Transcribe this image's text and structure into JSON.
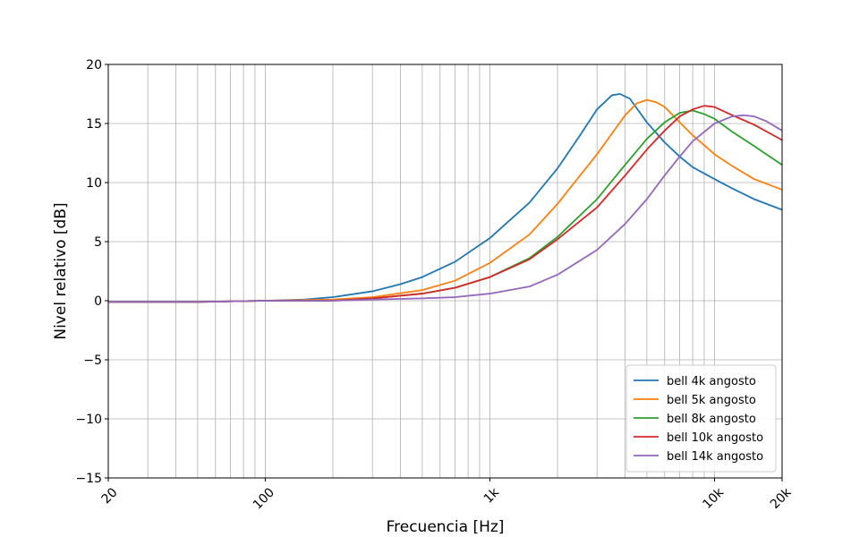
{
  "chart_data": {
    "type": "line",
    "xscale": "log",
    "xlabel": "Frecuencia [Hz]",
    "ylabel": "Nivel relativo [dB]",
    "xlim": [
      20,
      20000
    ],
    "ylim": [
      -15,
      20
    ],
    "grid": true,
    "legend_position": "lower-right",
    "x_ticks": [
      {
        "value": 20,
        "label": "20"
      },
      {
        "value": 100,
        "label": "100"
      },
      {
        "value": 1000,
        "label": "1k"
      },
      {
        "value": 10000,
        "label": "10k"
      },
      {
        "value": 20000,
        "label": "20k"
      }
    ],
    "y_ticks": [
      {
        "value": 20,
        "label": "20"
      },
      {
        "value": 15,
        "label": "15"
      },
      {
        "value": 10,
        "label": "10"
      },
      {
        "value": 5,
        "label": "5"
      },
      {
        "value": 0,
        "label": "0"
      },
      {
        "value": -5,
        "label": "−5"
      },
      {
        "value": -10,
        "label": "−10"
      },
      {
        "value": -15,
        "label": "−15"
      }
    ],
    "series": [
      {
        "name": "bell 4k angosto",
        "color": "#1f77b4",
        "points": [
          [
            20,
            -0.1
          ],
          [
            50,
            -0.1
          ],
          [
            100,
            0.0
          ],
          [
            150,
            0.1
          ],
          [
            200,
            0.3
          ],
          [
            300,
            0.8
          ],
          [
            400,
            1.4
          ],
          [
            500,
            2.0
          ],
          [
            700,
            3.3
          ],
          [
            1000,
            5.3
          ],
          [
            1500,
            8.3
          ],
          [
            2000,
            11.2
          ],
          [
            2500,
            13.9
          ],
          [
            3000,
            16.2
          ],
          [
            3500,
            17.4
          ],
          [
            3800,
            17.5
          ],
          [
            4200,
            17.1
          ],
          [
            5000,
            15.1
          ],
          [
            6000,
            13.4
          ],
          [
            7000,
            12.2
          ],
          [
            8000,
            11.3
          ],
          [
            10000,
            10.3
          ],
          [
            12000,
            9.5
          ],
          [
            15000,
            8.6
          ],
          [
            20000,
            7.7
          ]
        ]
      },
      {
        "name": "bell 5k angosto",
        "color": "#ff7f0e",
        "points": [
          [
            20,
            -0.1
          ],
          [
            50,
            -0.1
          ],
          [
            100,
            0.0
          ],
          [
            200,
            0.1
          ],
          [
            300,
            0.3
          ],
          [
            500,
            0.9
          ],
          [
            700,
            1.7
          ],
          [
            1000,
            3.2
          ],
          [
            1500,
            5.6
          ],
          [
            2000,
            8.2
          ],
          [
            3000,
            12.4
          ],
          [
            4000,
            15.7
          ],
          [
            4500,
            16.7
          ],
          [
            5000,
            17.0
          ],
          [
            5500,
            16.8
          ],
          [
            6000,
            16.4
          ],
          [
            7000,
            15.1
          ],
          [
            8000,
            14.0
          ],
          [
            10000,
            12.4
          ],
          [
            12000,
            11.4
          ],
          [
            15000,
            10.3
          ],
          [
            20000,
            9.4
          ]
        ]
      },
      {
        "name": "bell 8k angosto",
        "color": "#2ca02c",
        "points": [
          [
            20,
            -0.1
          ],
          [
            50,
            -0.1
          ],
          [
            100,
            0.0
          ],
          [
            200,
            0.0
          ],
          [
            300,
            0.2
          ],
          [
            500,
            0.6
          ],
          [
            700,
            1.1
          ],
          [
            1000,
            2.0
          ],
          [
            1500,
            3.6
          ],
          [
            2000,
            5.4
          ],
          [
            3000,
            8.6
          ],
          [
            4000,
            11.5
          ],
          [
            5000,
            13.7
          ],
          [
            6000,
            15.1
          ],
          [
            7000,
            15.9
          ],
          [
            8000,
            16.1
          ],
          [
            9000,
            15.8
          ],
          [
            10000,
            15.4
          ],
          [
            12000,
            14.3
          ],
          [
            15000,
            13.1
          ],
          [
            20000,
            11.5
          ]
        ]
      },
      {
        "name": "bell 10k angosto",
        "color": "#d62728",
        "points": [
          [
            20,
            -0.1
          ],
          [
            50,
            -0.1
          ],
          [
            100,
            0.0
          ],
          [
            200,
            0.0
          ],
          [
            300,
            0.2
          ],
          [
            500,
            0.6
          ],
          [
            700,
            1.1
          ],
          [
            1000,
            2.0
          ],
          [
            1500,
            3.5
          ],
          [
            2000,
            5.2
          ],
          [
            3000,
            7.9
          ],
          [
            4000,
            10.6
          ],
          [
            5000,
            12.8
          ],
          [
            6000,
            14.4
          ],
          [
            7000,
            15.6
          ],
          [
            8000,
            16.2
          ],
          [
            9000,
            16.5
          ],
          [
            10000,
            16.4
          ],
          [
            12000,
            15.7
          ],
          [
            15000,
            14.9
          ],
          [
            20000,
            13.6
          ]
        ]
      },
      {
        "name": "bell 14k angosto",
        "color": "#9467bd",
        "points": [
          [
            20,
            -0.1
          ],
          [
            50,
            -0.1
          ],
          [
            100,
            0.0
          ],
          [
            200,
            0.0
          ],
          [
            300,
            0.1
          ],
          [
            500,
            0.2
          ],
          [
            700,
            0.3
          ],
          [
            1000,
            0.6
          ],
          [
            1500,
            1.2
          ],
          [
            2000,
            2.2
          ],
          [
            3000,
            4.3
          ],
          [
            4000,
            6.5
          ],
          [
            5000,
            8.6
          ],
          [
            6000,
            10.6
          ],
          [
            7000,
            12.2
          ],
          [
            8000,
            13.5
          ],
          [
            10000,
            15.0
          ],
          [
            12000,
            15.6
          ],
          [
            13500,
            15.7
          ],
          [
            15000,
            15.6
          ],
          [
            17000,
            15.2
          ],
          [
            20000,
            14.4
          ]
        ]
      }
    ]
  }
}
